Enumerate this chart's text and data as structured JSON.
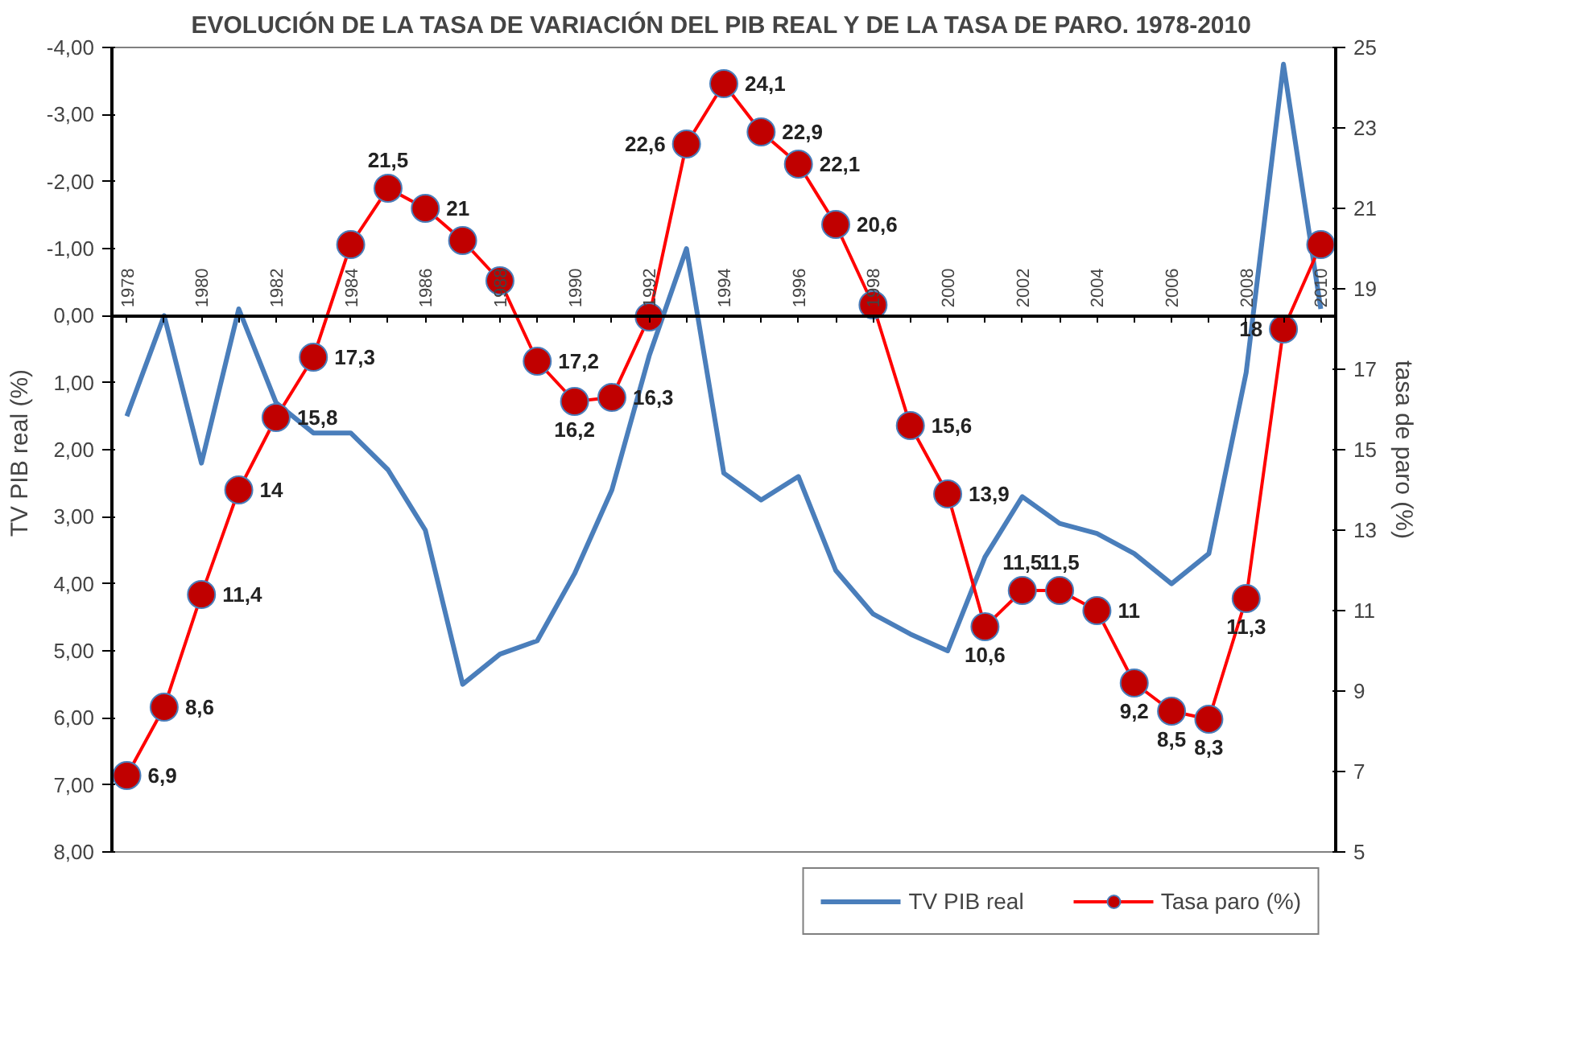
{
  "chart_data": {
    "type": "line",
    "title": "EVOLUCIÓN DE LA TASA DE VARIACIÓN DEL PIB REAL Y DE LA TASA DE PARO. 1978-2010",
    "ylabel": "TV  PIB real (%)",
    "y2label": "tasa de paro (%)",
    "x": [
      1978,
      1979,
      1980,
      1981,
      1982,
      1983,
      1984,
      1985,
      1986,
      1987,
      1988,
      1989,
      1990,
      1991,
      1992,
      1993,
      1994,
      1995,
      1996,
      1997,
      1998,
      1999,
      2000,
      2001,
      2002,
      2003,
      2004,
      2005,
      2006,
      2007,
      2008,
      2009,
      2010
    ],
    "xlim": [
      1977.6,
      2010.4
    ],
    "xticks": [
      1978,
      {
        "value": 1979,
        "label": null
      },
      1980,
      {
        "value": 1981,
        "label": null
      },
      1982,
      {
        "value": 1983,
        "label": null
      },
      1984,
      {
        "value": 1985,
        "label": null
      },
      1986,
      {
        "value": 1987,
        "label": null
      },
      1988,
      {
        "value": 1989,
        "label": null
      },
      1990,
      {
        "value": 1991,
        "label": null
      },
      1992,
      {
        "value": 1993,
        "label": null
      },
      1994,
      {
        "value": 1995,
        "label": null
      },
      1996,
      {
        "value": 1997,
        "label": null
      },
      1998,
      {
        "value": 1999,
        "label": null
      },
      2000,
      {
        "value": 2001,
        "label": null
      },
      2002,
      {
        "value": 2003,
        "label": null
      },
      2004,
      {
        "value": 2005,
        "label": null
      },
      2006,
      {
        "value": 2007,
        "label": null
      },
      2008,
      {
        "value": 2009,
        "label": null
      },
      2010
    ],
    "ylim": [
      8,
      -4
    ],
    "yticks": [
      {
        "value": -4,
        "label": "-4,00"
      },
      {
        "value": -3,
        "label": "-3,00"
      },
      {
        "value": -2,
        "label": "-2,00"
      },
      {
        "value": -1,
        "label": "-1,00"
      },
      {
        "value": 0,
        "label": "0,00"
      },
      {
        "value": 1,
        "label": "1,00"
      },
      {
        "value": 2,
        "label": "2,00"
      },
      {
        "value": 3,
        "label": "3,00"
      },
      {
        "value": 4,
        "label": "4,00"
      },
      {
        "value": 5,
        "label": "5,00"
      },
      {
        "value": 6,
        "label": "6,00"
      },
      {
        "value": 7,
        "label": "7,00"
      },
      {
        "value": 8,
        "label": "8,00"
      }
    ],
    "y2lim": [
      5,
      25
    ],
    "y2ticks": [
      5,
      7,
      9,
      11,
      13,
      15,
      17,
      19,
      21,
      23,
      25
    ],
    "grid": false,
    "legend": "bottom",
    "series": [
      {
        "name": "TV PIB real",
        "color": "#4a7ebb",
        "marker": "none",
        "values": [
          1.5,
          0.0,
          2.2,
          -0.1,
          1.3,
          1.75,
          1.75,
          2.3,
          3.2,
          5.5,
          5.05,
          4.85,
          3.85,
          2.6,
          0.6,
          -1.0,
          2.35,
          2.75,
          2.4,
          3.8,
          4.45,
          4.75,
          5.0,
          3.6,
          2.7,
          3.1,
          3.25,
          3.55,
          4.0,
          3.55,
          0.85,
          -3.75,
          -0.1
        ]
      },
      {
        "name": "Tasa paro (%)",
        "color": "#ff0000",
        "marker": "circle",
        "axis": "y2",
        "values": [
          6.9,
          8.6,
          11.4,
          14,
          15.8,
          17.3,
          20.1,
          21.5,
          21,
          20.2,
          19.2,
          17.2,
          16.2,
          16.3,
          18.3,
          22.6,
          24.1,
          22.9,
          22.1,
          20.6,
          18.6,
          15.6,
          13.9,
          10.6,
          11.5,
          11.5,
          11,
          9.2,
          8.5,
          8.3,
          11.3,
          18,
          20.1
        ],
        "value_labels": [
          "6,9",
          "8,6",
          "11,4",
          "14",
          "15,8",
          "17,3",
          null,
          "21,5",
          "21",
          null,
          null,
          "17,2",
          "16,2",
          "16,3",
          null,
          "22,6",
          "24,1",
          "22,9",
          "22,1",
          "20,6",
          null,
          "15,6",
          "13,9",
          "10,6",
          "11,5",
          "11,5",
          "11",
          "9,2",
          "8,5",
          "8,3",
          "11,3",
          "18",
          null
        ]
      }
    ]
  }
}
